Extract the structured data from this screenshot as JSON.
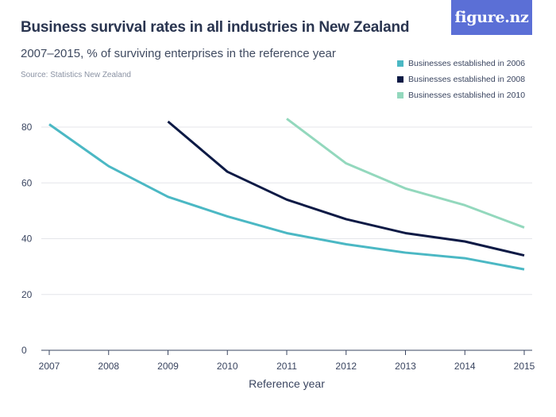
{
  "header": {
    "title": "Business survival rates in all industries in New Zealand",
    "subtitle": "2007–2015, % of surviving enterprises in the reference year",
    "source": "Source: Statistics New Zealand",
    "logo": "figure.nz"
  },
  "colors": {
    "series_2006": "#4bb8c4",
    "series_2008": "#0d1a45",
    "series_2010": "#93d8bd",
    "grid": "#e4e6ea",
    "axis": "#3a4560",
    "logo_bg": "#5b6fd6"
  },
  "chart_data": {
    "type": "line",
    "title": "Business survival rates in all industries in New Zealand",
    "subtitle": "2007–2015, % of surviving enterprises in the reference year",
    "xlabel": "Reference year",
    "ylabel": "",
    "x": [
      "2007",
      "2008",
      "2009",
      "2010",
      "2011",
      "2012",
      "2013",
      "2014",
      "2015"
    ],
    "yticks": [
      0,
      20,
      40,
      60,
      80
    ],
    "ylim": [
      0,
      85
    ],
    "grid": true,
    "legend_position": "top-right",
    "series": [
      {
        "name": "Businesses established in 2006",
        "color": "#4bb8c4",
        "values": [
          81,
          66,
          55,
          48,
          42,
          38,
          35,
          33,
          29
        ]
      },
      {
        "name": "Businesses established in 2008",
        "color": "#0d1a45",
        "values": [
          null,
          null,
          82,
          64,
          54,
          47,
          42,
          39,
          34
        ]
      },
      {
        "name": "Businesses established in 2010",
        "color": "#93d8bd",
        "values": [
          null,
          null,
          null,
          null,
          83,
          67,
          58,
          52,
          44
        ]
      }
    ]
  }
}
